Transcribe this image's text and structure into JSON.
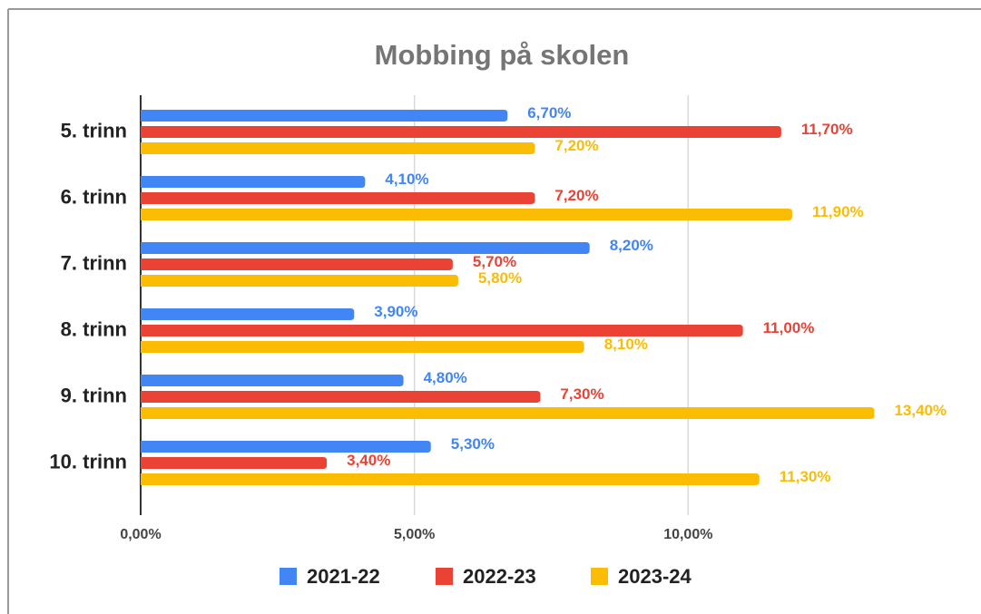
{
  "chart_data": {
    "type": "hbar",
    "title": "Mobbing på skolen",
    "categories": [
      "5. trinn",
      "6. trinn",
      "7. trinn",
      "8. trinn",
      "9. trinn",
      "10. trinn"
    ],
    "series": [
      {
        "name": "2021-22",
        "color": "#4285f4",
        "values": [
          6.7,
          4.1,
          8.2,
          3.9,
          4.8,
          5.3
        ],
        "value_labels": [
          "6,70%",
          "4,10%",
          "8,20%",
          "3,90%",
          "4,80%",
          "5,30%"
        ]
      },
      {
        "name": "2022-23",
        "color": "#ea4335",
        "values": [
          11.7,
          7.2,
          5.7,
          11.0,
          7.3,
          3.4
        ],
        "value_labels": [
          "11,70%",
          "7,20%",
          "5,70%",
          "11,00%",
          "7,30%",
          "3,40%"
        ]
      },
      {
        "name": "2023-24",
        "color": "#fbbc04",
        "values": [
          7.2,
          11.9,
          5.8,
          8.1,
          13.4,
          11.3
        ],
        "value_labels": [
          "7,20%",
          "11,90%",
          "5,80%",
          "8,10%",
          "13,40%",
          "11,30%"
        ]
      }
    ],
    "xlim": [
      0,
      15
    ],
    "xticks": [
      {
        "value": 0,
        "label": "0,00%"
      },
      {
        "value": 5,
        "label": "5,00%"
      },
      {
        "value": 10,
        "label": "10,00%"
      }
    ],
    "grid": true,
    "legend": "bottom"
  }
}
